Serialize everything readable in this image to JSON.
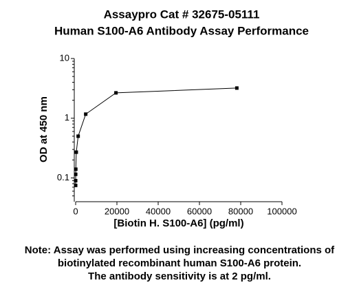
{
  "chart_data": {
    "type": "line",
    "title": [
      "Assaypro Cat # 32675-05111",
      "Human S100-A6 Antibody Assay Performance"
    ],
    "x_label": "[Biotin H. S100-A6] (pg/ml)",
    "y_label": "OD at 450 nm",
    "note": [
      "Note: Assay was performed using increasing concentrations of",
      "biotinylated recombinant human S100-A6 protein.",
      "The antibody sensitivity is at 2 pg/ml."
    ],
    "x": [
      1,
      5,
      19,
      76,
      305,
      1221,
      4883,
      19531,
      78125
    ],
    "series": [
      {
        "color": "#000000",
        "values": [
          0.075,
          0.09,
          0.115,
          0.14,
          0.27,
          0.5,
          1.17,
          2.66,
          3.2
        ]
      }
    ],
    "xlim": [
      0,
      100000
    ],
    "xticks": [
      0,
      20000,
      40000,
      60000,
      80000,
      100000
    ],
    "ylim": [
      0.04,
      10
    ],
    "yticks": [
      0.1,
      1,
      10
    ],
    "yscale": "log",
    "marker": "square"
  }
}
